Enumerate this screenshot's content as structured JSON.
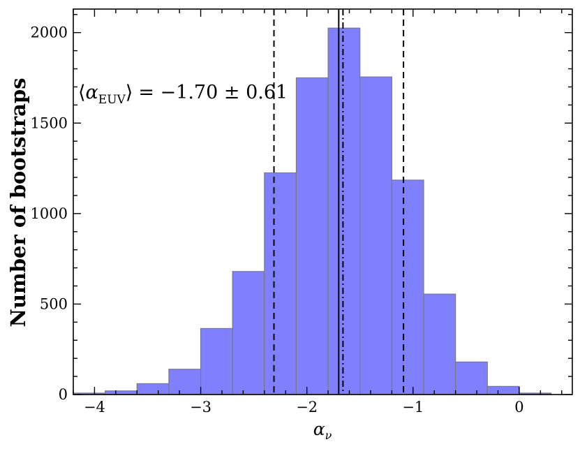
{
  "chart_data": {
    "type": "bar",
    "xlabel": "α",
    "xlabel_sub": "ν",
    "ylabel": "Number of bootstraps",
    "annotation": {
      "lhs_open": "⟨",
      "symbol": "α",
      "subscript": "EUV",
      "lhs_close": "⟩",
      "value_text": "= −1.70 ± 0.61",
      "position": "upper-left"
    },
    "xlim": [
      -4.2,
      0.5
    ],
    "ylim": [
      0,
      2130
    ],
    "xticks": [
      -4,
      -3,
      -2,
      -1,
      0
    ],
    "xtick_labels": [
      "−4",
      "−3",
      "−2",
      "−1",
      "0"
    ],
    "yticks": [
      0,
      500,
      1000,
      1500,
      2000
    ],
    "ytick_labels": [
      "0",
      "500",
      "1000",
      "1500",
      "2000"
    ],
    "bin_edges": [
      -4.2,
      -3.9,
      -3.6,
      -3.3,
      -3.0,
      -2.7,
      -2.4,
      -2.1,
      -1.8,
      -1.5,
      -1.2,
      -0.9,
      -0.6,
      -0.3,
      0.0,
      0.3
    ],
    "counts": [
      8,
      20,
      60,
      140,
      365,
      680,
      1225,
      1750,
      2025,
      1755,
      1185,
      555,
      180,
      45,
      8
    ],
    "vertical_lines": [
      {
        "x": -2.31,
        "style": "dashed"
      },
      {
        "x": -1.7,
        "style": "solid"
      },
      {
        "x": -1.66,
        "style": "dashdot"
      },
      {
        "x": -1.09,
        "style": "dashed"
      }
    ],
    "bar_color": "#8080ff",
    "bar_edge_color": "#7a7a7a",
    "grid": false
  }
}
